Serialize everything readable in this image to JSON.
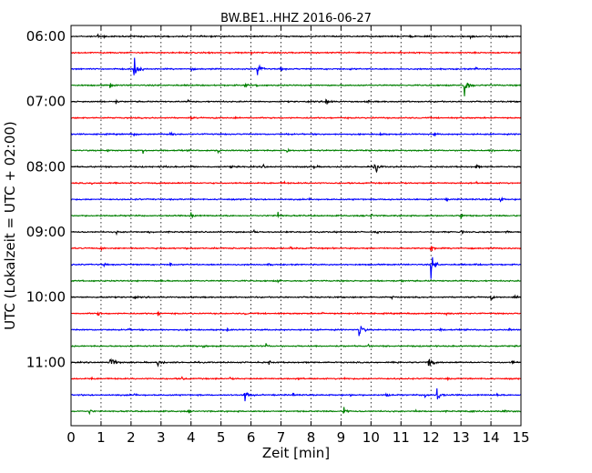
{
  "chart_data": {
    "type": "line",
    "title": "BW.BE1..HHZ 2016-06-27",
    "xlabel": "Zeit  [min]",
    "ylabel": "UTC (Lokalzeit = UTC + 02:00)",
    "xlim": [
      0,
      15
    ],
    "xticks": [
      0,
      1,
      2,
      3,
      4,
      5,
      6,
      7,
      8,
      9,
      10,
      11,
      12,
      13,
      14,
      15
    ],
    "x_tick_labels": [
      "0",
      "1",
      "2",
      "3",
      "4",
      "5",
      "6",
      "7",
      "8",
      "9",
      "10",
      "11",
      "12",
      "13",
      "14",
      "15"
    ],
    "grid": "vertical dotted",
    "y_tick_labels": [
      "06:00",
      "07:00",
      "08:00",
      "09:00",
      "10:00",
      "11:00"
    ],
    "colors": [
      "#000000",
      "#ff0000",
      "#0000ff",
      "#008000"
    ],
    "traces": [
      {
        "start": "06:00",
        "color": "#000000",
        "events": [
          [
            0.9,
            0.8
          ],
          [
            1.1,
            0.5
          ],
          [
            2.3,
            0.4
          ],
          [
            11.3,
            0.5
          ],
          [
            13.3,
            0.7
          ],
          [
            14.5,
            0.3
          ]
        ]
      },
      {
        "start": "06:15",
        "color": "#ff0000",
        "events": [
          [
            1.1,
            0.4
          ],
          [
            4.6,
            0.3
          ],
          [
            6.0,
            0.4
          ],
          [
            11.0,
            0.5
          ]
        ]
      },
      {
        "start": "06:30",
        "color": "#0000ff",
        "events": [
          [
            2.1,
            3.0
          ],
          [
            4.0,
            0.3
          ],
          [
            6.2,
            2.0
          ],
          [
            7.0,
            0.6
          ],
          [
            9.3,
            0.3
          ],
          [
            13.5,
            0.4
          ]
        ]
      },
      {
        "start": "06:45",
        "color": "#008000",
        "events": [
          [
            1.3,
            0.8
          ],
          [
            5.8,
            0.8
          ],
          [
            6.2,
            0.5
          ],
          [
            13.1,
            3.0
          ],
          [
            14.0,
            0.3
          ]
        ]
      },
      {
        "start": "07:00",
        "color": "#000000",
        "events": [
          [
            1.5,
            0.4
          ],
          [
            3.9,
            0.3
          ],
          [
            8.5,
            1.8
          ],
          [
            9.9,
            0.3
          ]
        ]
      },
      {
        "start": "07:15",
        "color": "#ff0000",
        "events": [
          [
            4.0,
            0.3
          ],
          [
            5.4,
            0.3
          ],
          [
            10.0,
            0.2
          ],
          [
            15.0,
            0.8
          ]
        ]
      },
      {
        "start": "07:30",
        "color": "#0000ff",
        "events": [
          [
            2.1,
            0.4
          ],
          [
            3.3,
            0.7
          ],
          [
            7.2,
            0.3
          ],
          [
            10.3,
            0.5
          ],
          [
            12.1,
            0.4
          ]
        ]
      },
      {
        "start": "07:45",
        "color": "#008000",
        "events": [
          [
            1.2,
            0.3
          ],
          [
            2.4,
            0.5
          ],
          [
            4.9,
            0.6
          ],
          [
            7.2,
            0.5
          ],
          [
            14.0,
            0.6
          ]
        ]
      },
      {
        "start": "08:00",
        "color": "#000000",
        "events": [
          [
            3.1,
            0.4
          ],
          [
            4.0,
            0.3
          ],
          [
            5.3,
            0.5
          ],
          [
            6.4,
            0.6
          ],
          [
            8.1,
            0.5
          ],
          [
            10.1,
            2.2
          ],
          [
            13.5,
            0.6
          ]
        ]
      },
      {
        "start": "08:15",
        "color": "#ff0000",
        "events": [
          [
            0.7,
            0.3
          ],
          [
            3.2,
            0.3
          ],
          [
            7.1,
            0.3
          ],
          [
            11.0,
            0.3
          ],
          [
            13.5,
            0.2
          ]
        ]
      },
      {
        "start": "08:30",
        "color": "#0000ff",
        "events": [
          [
            2.2,
            0.4
          ],
          [
            7.9,
            0.8
          ],
          [
            10.6,
            0.5
          ],
          [
            12.5,
            0.4
          ],
          [
            14.3,
            0.9
          ]
        ]
      },
      {
        "start": "08:45",
        "color": "#008000",
        "events": [
          [
            4.0,
            1.2
          ],
          [
            6.9,
            0.8
          ],
          [
            10.0,
            0.5
          ],
          [
            13.0,
            1.2
          ]
        ]
      },
      {
        "start": "09:00",
        "color": "#000000",
        "events": [
          [
            1.5,
            0.4
          ],
          [
            2.6,
            0.3
          ],
          [
            6.1,
            0.7
          ],
          [
            7.6,
            0.4
          ],
          [
            10.2,
            0.4
          ],
          [
            13.0,
            0.4
          ],
          [
            14.5,
            0.3
          ]
        ]
      },
      {
        "start": "09:15",
        "color": "#ff0000",
        "events": [
          [
            1.0,
            0.4
          ],
          [
            3.8,
            0.4
          ],
          [
            5.4,
            0.3
          ],
          [
            7.3,
            0.3
          ],
          [
            12.0,
            1.2
          ],
          [
            14.3,
            0.3
          ]
        ]
      },
      {
        "start": "09:30",
        "color": "#0000ff",
        "events": [
          [
            1.1,
            0.3
          ],
          [
            3.3,
            0.5
          ],
          [
            6.6,
            0.3
          ],
          [
            12.0,
            2.6
          ],
          [
            13.5,
            0.3
          ]
        ]
      },
      {
        "start": "09:45",
        "color": "#008000",
        "events": [
          [
            3.0,
            0.3
          ],
          [
            6.9,
            0.3
          ],
          [
            11.0,
            0.3
          ]
        ]
      },
      {
        "start": "10:00",
        "color": "#000000",
        "events": [
          [
            1.0,
            0.3
          ],
          [
            2.1,
            0.4
          ],
          [
            10.7,
            0.3
          ],
          [
            14.0,
            0.6
          ],
          [
            14.8,
            0.5
          ]
        ]
      },
      {
        "start": "10:15",
        "color": "#ff0000",
        "events": [
          [
            0.9,
            0.6
          ],
          [
            2.9,
            0.5
          ],
          [
            5.8,
            0.3
          ],
          [
            8.4,
            0.3
          ],
          [
            12.5,
            0.5
          ]
        ]
      },
      {
        "start": "10:30",
        "color": "#0000ff",
        "events": [
          [
            1.9,
            0.3
          ],
          [
            5.2,
            0.3
          ],
          [
            9.6,
            2.2
          ],
          [
            12.3,
            0.3
          ],
          [
            14.6,
            0.3
          ]
        ]
      },
      {
        "start": "10:45",
        "color": "#008000",
        "events": [
          [
            4.4,
            0.4
          ],
          [
            6.5,
            0.5
          ],
          [
            9.9,
            0.3
          ],
          [
            13.6,
            0.3
          ]
        ]
      },
      {
        "start": "11:00",
        "color": "#000000",
        "events": [
          [
            1.3,
            2.6
          ],
          [
            2.9,
            1.6
          ],
          [
            6.6,
            0.4
          ],
          [
            10.9,
            0.3
          ],
          [
            11.9,
            2.3
          ],
          [
            14.7,
            0.7
          ]
        ]
      },
      {
        "start": "11:15",
        "color": "#ff0000",
        "events": [
          [
            0.7,
            0.3
          ],
          [
            3.7,
            0.5
          ],
          [
            5.3,
            0.4
          ],
          [
            7.6,
            0.5
          ],
          [
            9.1,
            0.3
          ],
          [
            12.5,
            0.3
          ]
        ]
      },
      {
        "start": "11:30",
        "color": "#0000ff",
        "events": [
          [
            2.1,
            1.0
          ],
          [
            5.8,
            2.0
          ],
          [
            7.4,
            0.4
          ],
          [
            9.3,
            0.5
          ],
          [
            10.5,
            0.9
          ],
          [
            11.8,
            0.8
          ],
          [
            12.2,
            1.8
          ],
          [
            14.2,
            0.4
          ]
        ]
      },
      {
        "start": "11:45",
        "color": "#008000",
        "events": [
          [
            0.6,
            0.7
          ],
          [
            3.9,
            0.3
          ],
          [
            9.1,
            1.5
          ],
          [
            11.5,
            0.3
          ],
          [
            13.3,
            0.3
          ],
          [
            14.4,
            0.6
          ]
        ]
      }
    ]
  }
}
